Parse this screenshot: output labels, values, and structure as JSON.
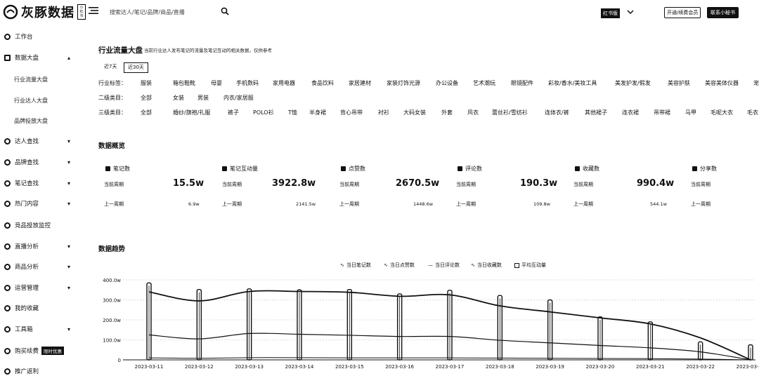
{
  "app": {
    "logo_text": "灰豚数据",
    "logo_badge": "小红书",
    "search_placeholder": "搜索达人/笔记/品牌/商品/直播",
    "team_badge": "红书版",
    "upgrade_label": "开通/续费会员",
    "contact_label": "联系小秘书"
  },
  "sidebar": {
    "items": [
      {
        "label": "工作台",
        "icon": "home-icon",
        "chev": ""
      },
      {
        "label": "数据大盘",
        "icon": "dashboard-icon",
        "chev": "▴"
      },
      {
        "label": "达人查找",
        "icon": "user-search-icon",
        "chev": "▾"
      },
      {
        "label": "品牌查找",
        "icon": "brand-icon",
        "chev": "▾"
      },
      {
        "label": "笔记查找",
        "icon": "note-icon",
        "chev": "▾"
      },
      {
        "label": "热门内容",
        "icon": "fire-icon",
        "chev": "▾"
      },
      {
        "label": "竞品投放监控",
        "icon": "monitor-icon",
        "chev": ""
      },
      {
        "label": "直播分析",
        "icon": "live-icon",
        "chev": "▾"
      },
      {
        "label": "商品分析",
        "icon": "goods-icon",
        "chev": "▾"
      },
      {
        "label": "运营管理",
        "icon": "manage-icon",
        "chev": "▾"
      },
      {
        "label": "我的收藏",
        "icon": "star-icon",
        "chev": ""
      },
      {
        "label": "工具箱",
        "icon": "toolbox-icon",
        "chev": "▾"
      },
      {
        "label": "购买续费",
        "icon": "cart-icon",
        "chev": ""
      },
      {
        "label": "推广返利",
        "icon": "gift-icon",
        "chev": ""
      }
    ],
    "sub_items": [
      "行业流量大盘",
      "行业达人大盘",
      "品牌投放大盘"
    ],
    "buy_tag": "限时优惠"
  },
  "page": {
    "title": "行业流量大盘",
    "description": "当前行业达人发布笔记的流量及笔记互动的相关数据，仅供参考",
    "periods": [
      "近7天",
      "近30天"
    ],
    "active_period": "近30天"
  },
  "filters": [
    {
      "label": "行业标签：",
      "options": [
        "服装",
        "箱包鞋靴",
        "母婴",
        "手机数码",
        "家用电器",
        "食品饮料",
        "家居建材",
        "家装灯饰光源",
        "办公设备",
        "艺术潮玩",
        "眼镜配件",
        "彩妆/香水/美妆工具",
        "美发护发/假发",
        "美容护肤",
        "美容美体仪器",
        "宠物"
      ]
    },
    {
      "label": "二级类目：",
      "options": [
        "全部",
        "女装",
        "男装",
        "内衣/家居服"
      ]
    },
    {
      "label": "三级类目：",
      "options": [
        "全部",
        "婚纱/旗袍/礼服",
        "裤子",
        "POLO衫",
        "T恤",
        "半身裙",
        "背心吊带",
        "衬衫",
        "大码女装",
        "外套",
        "风衣",
        "蕾丝衫/雪纺衫",
        "连体衣/裤",
        "其他裙子",
        "连衣裙",
        "吊带裙",
        "马甲",
        "毛呢大衣",
        "毛衣"
      ]
    }
  ],
  "overview": {
    "title": "数据概览",
    "current_label": "当前周期",
    "previous_label": "上一周期",
    "metrics": [
      {
        "name": "笔记数",
        "icon": "note-count-icon",
        "current": "15.5w",
        "previous": "6.9w"
      },
      {
        "name": "笔记互动量",
        "icon": "interaction-icon",
        "current": "3922.8w",
        "previous": "2141.5w"
      },
      {
        "name": "点赞数",
        "icon": "like-icon",
        "current": "2670.5w",
        "previous": "1448.6w"
      },
      {
        "name": "评论数",
        "icon": "comment-icon",
        "current": "190.3w",
        "previous": "109.8w"
      },
      {
        "name": "收藏数",
        "icon": "collect-icon",
        "current": "990.4w",
        "previous": "544.1w"
      },
      {
        "name": "分享数",
        "icon": "share-icon",
        "current": "",
        "previous": ""
      }
    ]
  },
  "trend": {
    "title": "数据趋势",
    "legend": [
      "当日笔记数",
      "当日点赞数",
      "当日评论数",
      "当日收藏数",
      "平均互动量"
    ]
  },
  "chart_data": {
    "type": "line",
    "x": [
      "2023-03-11",
      "2023-03-12",
      "2023-03-13",
      "2023-03-14",
      "2023-03-15",
      "2023-03-16",
      "2023-03-17",
      "2023-03-18",
      "2023-03-19",
      "2023-03-20",
      "2023-03-21",
      "2023-03-22",
      "2023-03-23"
    ],
    "y_ticks": [
      "400.0w",
      "300.0w",
      "200.0w",
      "100.0w",
      "0"
    ],
    "ylim": [
      0,
      400
    ],
    "series": [
      {
        "name": "当日点赞数",
        "values": [
          340,
          295,
          342,
          342,
          338,
          318,
          325,
          270,
          240,
          210,
          180,
          110,
          0
        ]
      },
      {
        "name": "当日收藏数",
        "values": [
          125,
          105,
          132,
          128,
          123,
          117,
          117,
          98,
          85,
          72,
          60,
          40,
          0
        ]
      },
      {
        "name": "当日评论数",
        "values": [
          10,
          8,
          11,
          11,
          10,
          10,
          10,
          9,
          8,
          7,
          6,
          4,
          0
        ]
      },
      {
        "name": "平均互动量",
        "values": [
          385,
          352,
          355,
          350,
          352,
          330,
          348,
          322,
          300,
          215,
          190,
          90,
          75
        ]
      }
    ]
  }
}
